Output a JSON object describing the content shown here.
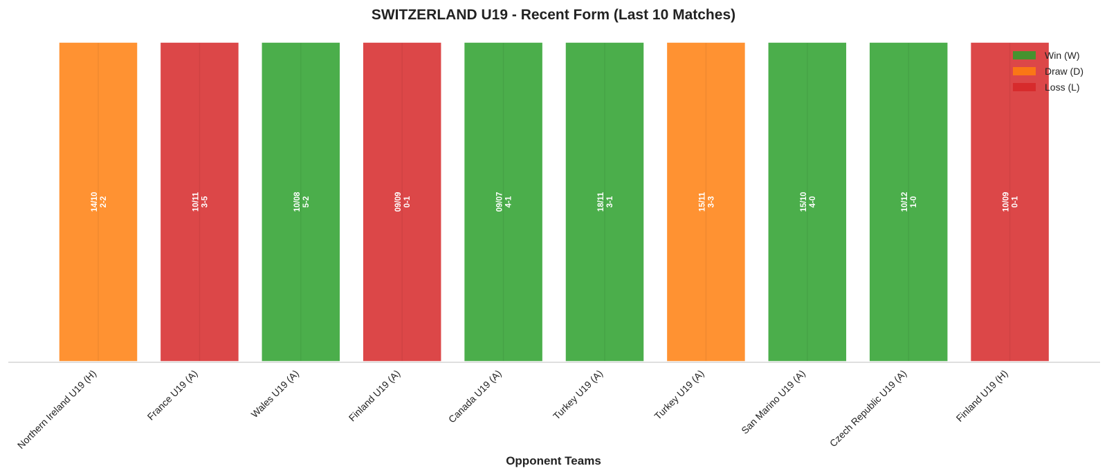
{
  "chart_data": {
    "type": "bar",
    "title": "SWITZERLAND U19 - Recent Form (Last 10 Matches)",
    "xlabel": "Opponent Teams",
    "ylabel": "",
    "ylim": [
      0,
      1
    ],
    "grid": false,
    "legend_position": "top-right",
    "results_legend": [
      {
        "code": "W",
        "label": "Win (W)",
        "color": "#2ca02c"
      },
      {
        "code": "D",
        "label": "Draw (D)",
        "color": "#ff7f0e"
      },
      {
        "code": "L",
        "label": "Loss (L)",
        "color": "#d62728"
      }
    ],
    "categories": [
      "Northern Ireland U19 (H)",
      "France U19 (A)",
      "Wales U19 (A)",
      "Finland U19 (A)",
      "Canada U19 (A)",
      "Turkey U19 (A)",
      "Turkey U19 (A)",
      "San Marino U19 (A)",
      "Czech Republic U19 (A)",
      "Finland U19 (H)"
    ],
    "values": [
      1,
      1,
      1,
      1,
      1,
      1,
      1,
      1,
      1,
      1
    ],
    "results": [
      "D",
      "L",
      "W",
      "L",
      "W",
      "W",
      "D",
      "W",
      "W",
      "L"
    ],
    "dates": [
      "14/10",
      "10/11",
      "10/08",
      "09/09",
      "09/07",
      "18/11",
      "15/11",
      "15/10",
      "10/12",
      "10/09"
    ],
    "scores": [
      "2-2",
      "3-5",
      "5-2",
      "0-1",
      "4-1",
      "3-1",
      "3-3",
      "4-0",
      "1-0",
      "0-1"
    ]
  }
}
